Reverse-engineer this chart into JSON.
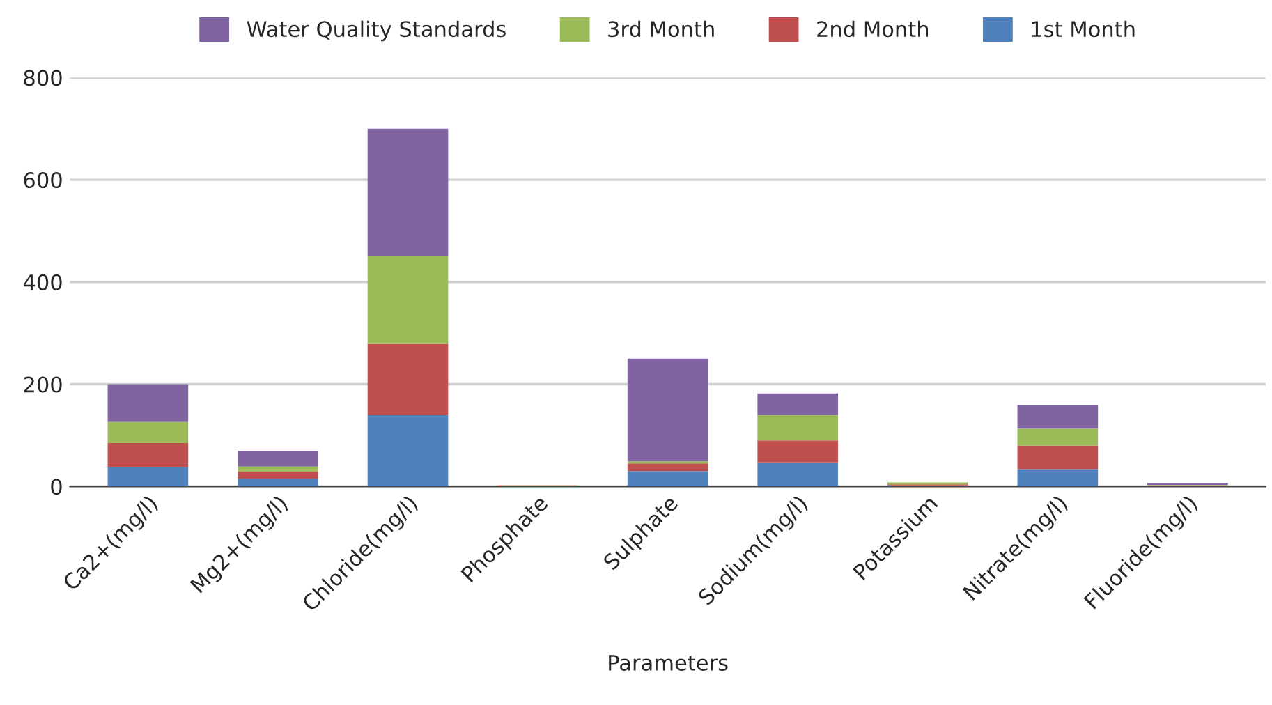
{
  "chart_data": {
    "type": "bar",
    "stacked": true,
    "xlabel": "Parameters",
    "categories": [
      "Ca2+(mg/l)",
      "Mg2+(mg/l)",
      "Chloride(mg/l)",
      "Phosphate",
      "Sulphate",
      "Sodium(mg/l)",
      "Potassium",
      "Nitrate(mg/l)",
      "Fluoride(mg/l)"
    ],
    "series": [
      {
        "name": "1st Month",
        "color": "#4f81bd",
        "values": [
          38,
          15,
          140,
          0,
          30,
          47,
          2,
          34,
          1
        ]
      },
      {
        "name": "2nd Month",
        "color": "#c0504d",
        "values": [
          47,
          14,
          139,
          2,
          15,
          43,
          2,
          46,
          1
        ]
      },
      {
        "name": "3rd Month",
        "color": "#9bbb59",
        "values": [
          41,
          10,
          171,
          0,
          4,
          50,
          4,
          33,
          1
        ]
      },
      {
        "name": "Water Quality Standards",
        "color": "#8064a2",
        "values": [
          74,
          31,
          250,
          0,
          201,
          42,
          0,
          46,
          4
        ]
      }
    ],
    "ylim": [
      0,
      800
    ],
    "yticks": [
      0,
      200,
      400,
      600,
      800
    ],
    "grid": "y",
    "legend": "top"
  }
}
